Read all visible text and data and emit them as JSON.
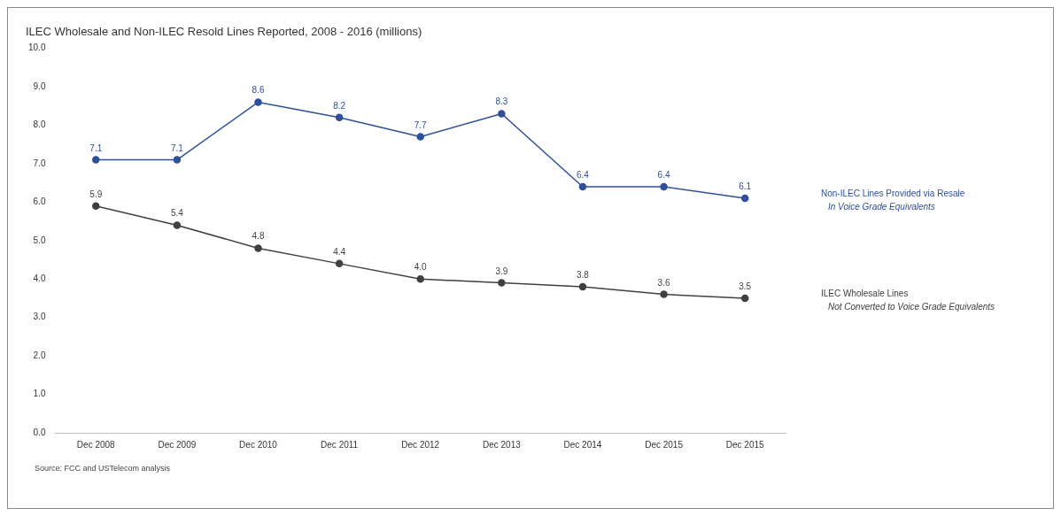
{
  "chart_data": {
    "type": "line",
    "title": "ILEC Wholesale and Non-ILEC Resold Lines Reported, 2008 - 2016 (millions)",
    "categories": [
      "Dec 2008",
      "Dec 2009",
      "Dec 2010",
      "Dec 2011",
      "Dec 2012",
      "Dec 2013",
      "Dec 2014",
      "Dec 2015",
      "Dec 2015"
    ],
    "series": [
      {
        "name": "Non-ILEC Lines Provided via Resale",
        "color": "#2e4f9a",
        "values": [
          7.1,
          7.1,
          8.6,
          8.2,
          7.7,
          8.3,
          6.4,
          6.4,
          6.1
        ],
        "value_labels": [
          "7.1",
          "7.1",
          "8.6",
          "8.2",
          "7.7",
          "8.3",
          "6.4",
          "6.4",
          "6.1"
        ]
      },
      {
        "name": "ILEC Wholesale Lines",
        "color": "#404040",
        "values": [
          5.9,
          5.4,
          4.8,
          4.4,
          4.0,
          3.9,
          3.8,
          3.6,
          3.5
        ],
        "value_labels": [
          "5.9",
          "5.4",
          "4.8",
          "4.4",
          "4.0",
          "3.9",
          "3.8",
          "3.6",
          "3.5"
        ]
      }
    ],
    "ylim": [
      0,
      10
    ],
    "yticks": [
      {
        "value": 0,
        "label": "0.0"
      },
      {
        "value": 1,
        "label": "1.0"
      },
      {
        "value": 2,
        "label": "2.0"
      },
      {
        "value": 3,
        "label": "3.0"
      },
      {
        "value": 4,
        "label": "4.0"
      },
      {
        "value": 5,
        "label": "5.0"
      },
      {
        "value": 6,
        "label": "6.0"
      },
      {
        "value": 7,
        "label": "7.0"
      },
      {
        "value": 8,
        "label": "8.0"
      },
      {
        "value": 9,
        "label": "9.0"
      },
      {
        "value": 10,
        "label": "10.0"
      }
    ],
    "annotations": [
      "In Voice Grade Equivalents",
      "Not Converted to Voice Grade Equivalents",
      "Source: FCC and USTelecom analysis"
    ],
    "marker": "circle",
    "line_style": "solid",
    "grid": false,
    "legend": false
  }
}
